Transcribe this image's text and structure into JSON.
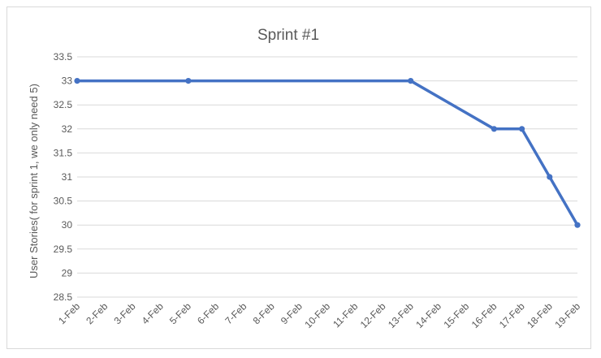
{
  "chart_data": {
    "type": "line",
    "title": "Sprint #1",
    "xlabel": "",
    "ylabel": "User Stories( for sprint 1, we only need 5)",
    "categories": [
      "1-Feb",
      "2-Feb",
      "3-Feb",
      "4-Feb",
      "5-Feb",
      "6-Feb",
      "7-Feb",
      "8-Feb",
      "9-Feb",
      "10-Feb",
      "11-Feb",
      "12-Feb",
      "13-Feb",
      "14-Feb",
      "15-Feb",
      "16-Feb",
      "17-Feb",
      "18-Feb",
      "19-Feb"
    ],
    "yticks": [
      "28.5",
      "29",
      "29.5",
      "30",
      "30.5",
      "31",
      "31.5",
      "32",
      "32.5",
      "33",
      "33.5"
    ],
    "ylim": [
      28.5,
      33.5
    ],
    "grid": true,
    "legend": "none",
    "series": [
      {
        "color": "#4472c4",
        "points": [
          {
            "x": "1-Feb",
            "y": 33
          },
          {
            "x": "5-Feb",
            "y": 33
          },
          {
            "x": "13-Feb",
            "y": 33
          },
          {
            "x": "16-Feb",
            "y": 32
          },
          {
            "x": "17-Feb",
            "y": 32
          },
          {
            "x": "18-Feb",
            "y": 31
          },
          {
            "x": "19-Feb",
            "y": 30
          }
        ]
      }
    ]
  }
}
